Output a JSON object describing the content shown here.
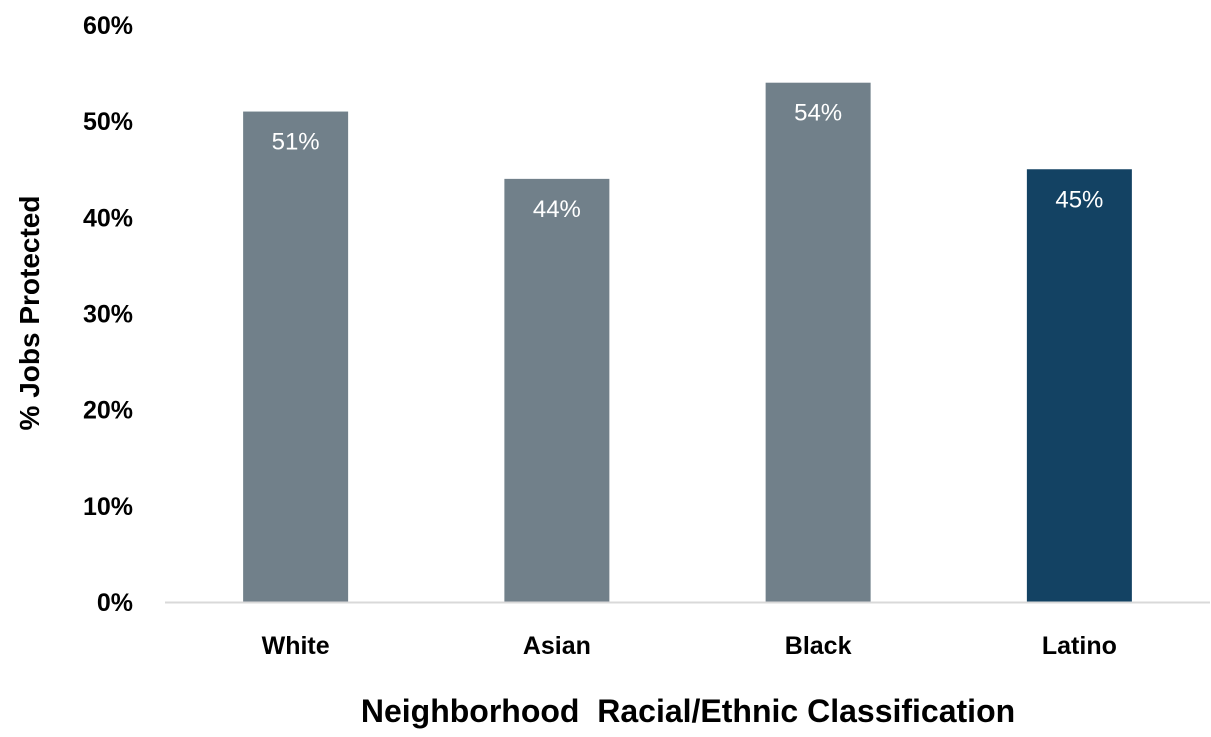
{
  "chart_data": {
    "type": "bar",
    "title": "",
    "xlabel": "Neighborhood  Racial/Ethnic Classification",
    "ylabel": "% Jobs Protected",
    "categories": [
      "White",
      "Asian",
      "Black",
      "Latino"
    ],
    "values": [
      51,
      44,
      54,
      45
    ],
    "data_labels": [
      "51%",
      "44%",
      "54%",
      "45%"
    ],
    "ylim": [
      0,
      60
    ],
    "yticks": [
      0,
      10,
      20,
      30,
      40,
      50,
      60
    ],
    "ytick_labels": [
      "0%",
      "10%",
      "20%",
      "30%",
      "40%",
      "50%",
      "60%"
    ],
    "grid": false,
    "legend": "none",
    "colors": {
      "default_bar": "#71808a",
      "highlight_bar": "#134263",
      "axis_line": "#d9d9d9",
      "data_label": "#ffffff",
      "text": "#000000"
    },
    "highlight_category": "Latino"
  }
}
